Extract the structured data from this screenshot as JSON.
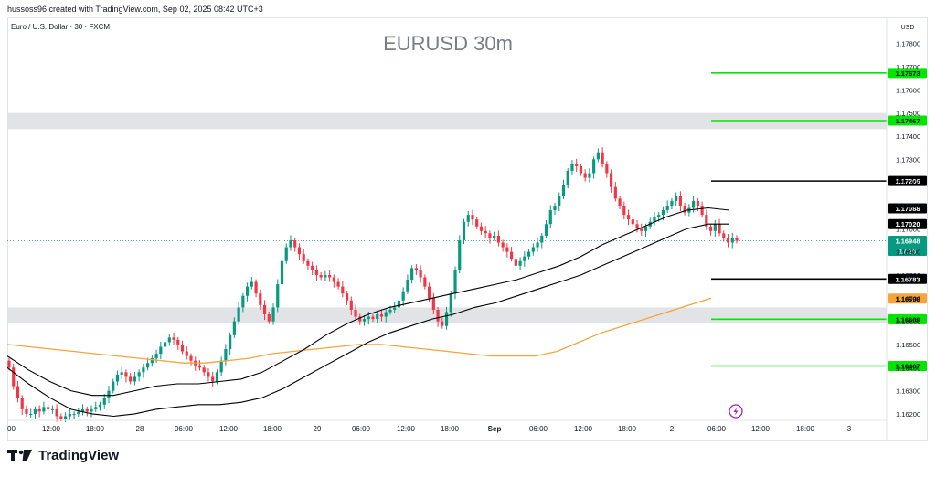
{
  "header": {
    "credit": "hussoss96 created with TradingView.com, Sep 02, 2025 08:42 UTC+3"
  },
  "footer": {
    "brand": "TradingView"
  },
  "colors": {
    "up": "#089981",
    "down": "#f23645",
    "green_level": "#00e600",
    "orange": "#f7a43a",
    "black": "#000000",
    "zone": "#e2e3e7"
  },
  "chart_data": {
    "type": "candlestick",
    "symbol_line": "Euro / U.S. Dollar · 30 · FXCM",
    "title": "EURUSD 30m",
    "currency": "USD",
    "ylim": [
      1.1618,
      1.1785
    ],
    "y_ticks": [
      "1.17800",
      "1.17700",
      "1.17600",
      "1.17500",
      "1.17400",
      "1.17300",
      "1.17200",
      "1.17100",
      "1.17000",
      "1.16900",
      "1.16800",
      "1.16700",
      "1.16600",
      "1.16500",
      "1.16400",
      "1.16300",
      "1.16200"
    ],
    "x_ticks": [
      "00",
      "12:00",
      "18:00",
      "28",
      "06:00",
      "12:00",
      "18:00",
      "29",
      "06:00",
      "12:00",
      "18:00",
      "Sep",
      "06:00",
      "12:00",
      "18:00",
      "2",
      "06:00",
      "12:00",
      "18:00",
      "3"
    ],
    "current_price": "1.16948",
    "countdown": "17:16",
    "price_labels": [
      {
        "value": "1.17673",
        "style": "green"
      },
      {
        "value": "1.17467",
        "style": "green"
      },
      {
        "value": "1.17206",
        "style": "black"
      },
      {
        "value": "1.17088",
        "style": "black"
      },
      {
        "value": "1.17020",
        "style": "black"
      },
      {
        "value": "1.16948",
        "style": "current"
      },
      {
        "value": "1.16783",
        "style": "black"
      },
      {
        "value": "1.16698",
        "style": "orange"
      },
      {
        "value": "1.16609",
        "style": "green"
      },
      {
        "value": "1.16407",
        "style": "green"
      }
    ],
    "zones": [
      {
        "from": 1.1743,
        "to": 1.175
      },
      {
        "from": 1.1659,
        "to": 1.1666
      }
    ],
    "candles_close": [
      1.164,
      1.1632,
      1.1627,
      1.1622,
      1.162,
      1.162,
      1.1622,
      1.1621,
      1.1623,
      1.1622,
      1.1622,
      1.1619,
      1.1618,
      1.1619,
      1.162,
      1.162,
      1.1621,
      1.1622,
      1.1621,
      1.1622,
      1.1623,
      1.1624,
      1.1627,
      1.163,
      1.1634,
      1.1637,
      1.1638,
      1.1636,
      1.1634,
      1.1636,
      1.1638,
      1.164,
      1.1642,
      1.1644,
      1.1646,
      1.1649,
      1.1651,
      1.1653,
      1.1652,
      1.165,
      1.1647,
      1.1645,
      1.1643,
      1.1641,
      1.164,
      1.1638,
      1.1636,
      1.1634,
      1.1638,
      1.1643,
      1.1648,
      1.1654,
      1.166,
      1.1666,
      1.1671,
      1.1675,
      1.1677,
      1.1672,
      1.1667,
      1.1663,
      1.166,
      1.1666,
      1.1676,
      1.1686,
      1.1692,
      1.1695,
      1.1692,
      1.1689,
      1.1686,
      1.1684,
      1.1682,
      1.168,
      1.1679,
      1.168,
      1.1679,
      1.1677,
      1.1675,
      1.1672,
      1.1669,
      1.1665,
      1.1662,
      1.166,
      1.1661,
      1.1662,
      1.1661,
      1.1663,
      1.1662,
      1.1664,
      1.1665,
      1.1666,
      1.1669,
      1.1673,
      1.1678,
      1.1683,
      1.1682,
      1.1679,
      1.1675,
      1.167,
      1.1665,
      1.166,
      1.1658,
      1.1664,
      1.1672,
      1.1682,
      1.1695,
      1.1703,
      1.1706,
      1.1704,
      1.1701,
      1.1699,
      1.1698,
      1.1696,
      1.1697,
      1.1694,
      1.1692,
      1.169,
      1.1687,
      1.1684,
      1.1686,
      1.1688,
      1.169,
      1.1692,
      1.1694,
      1.1697,
      1.1702,
      1.1708,
      1.171,
      1.1714,
      1.1719,
      1.1725,
      1.1728,
      1.1727,
      1.1724,
      1.1722,
      1.1724,
      1.173,
      1.1733,
      1.1728,
      1.1724,
      1.1718,
      1.1713,
      1.171,
      1.1706,
      1.1704,
      1.1702,
      1.17,
      1.1699,
      1.1701,
      1.1703,
      1.1705,
      1.1706,
      1.1708,
      1.171,
      1.1712,
      1.1714,
      1.171,
      1.1707,
      1.1709,
      1.1712,
      1.171,
      1.1706,
      1.1701,
      1.1699,
      1.1702,
      1.1698,
      1.1696,
      1.1694,
      1.1696,
      1.16948
    ],
    "indicator_orange": [
      1.165,
      1.1649,
      1.1648,
      1.1647,
      1.1646,
      1.1645,
      1.1644,
      1.1643,
      1.1642,
      1.1642,
      1.1643,
      1.1644,
      1.1646,
      1.1647,
      1.1648,
      1.1649,
      1.165,
      1.165,
      1.1649,
      1.1648,
      1.1647,
      1.1646,
      1.1645,
      1.1645,
      1.1645,
      1.1647,
      1.1651,
      1.1655,
      1.1658,
      1.1661,
      1.1664,
      1.1667,
      1.167
    ],
    "channel_upper": [
      1.1645,
      1.1639,
      1.1634,
      1.163,
      1.1628,
      1.1628,
      1.163,
      1.1632,
      1.1633,
      1.1633,
      1.1634,
      1.1635,
      1.1638,
      1.1643,
      1.1648,
      1.1654,
      1.1659,
      1.1663,
      1.1666,
      1.1668,
      1.167,
      1.1672,
      1.1674,
      1.1676,
      1.1678,
      1.1681,
      1.1684,
      1.1688,
      1.1693,
      1.1697,
      1.1701,
      1.1705,
      1.1708,
      1.1709,
      1.1708
    ],
    "channel_lower": [
      1.164,
      1.1633,
      1.1627,
      1.1622,
      1.162,
      1.1619,
      1.162,
      1.1622,
      1.1623,
      1.1624,
      1.1624,
      1.1625,
      1.1627,
      1.1631,
      1.1636,
      1.1641,
      1.1646,
      1.1651,
      1.1655,
      1.1658,
      1.1661,
      1.1663,
      1.1666,
      1.1668,
      1.1671,
      1.1674,
      1.1677,
      1.168,
      1.1684,
      1.1688,
      1.1692,
      1.1696,
      1.17,
      1.1702,
      1.1702
    ]
  }
}
